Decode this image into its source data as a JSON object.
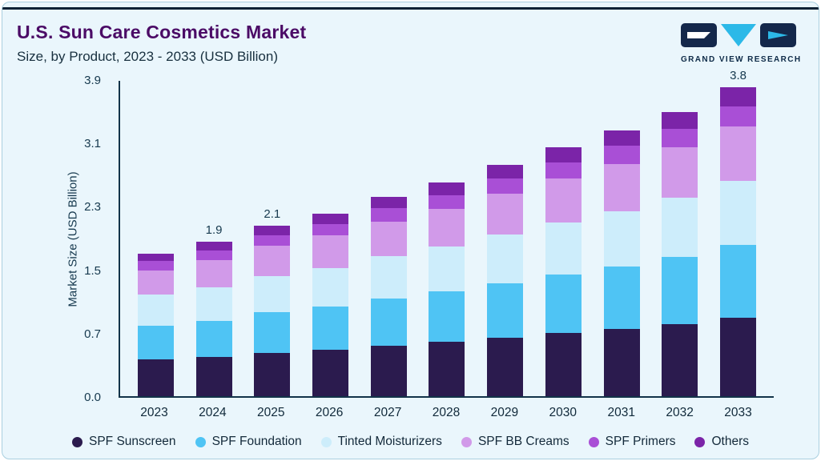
{
  "header": {
    "title": "U.S. Sun Care Cosmetics Market",
    "subtitle": "Size, by Product, 2023 - 2033 (USD Billion)",
    "brand": "GRAND VIEW RESEARCH"
  },
  "chart_data": {
    "type": "bar",
    "stacked": true,
    "title": "U.S. Sun Care Cosmetics Market Size, by Product, 2023 - 2033 (USD Billion)",
    "ylabel": "Market Size (USD Billion)",
    "ylim": [
      0,
      3.9
    ],
    "yticks": [
      "0.0",
      "0.7",
      "1.5",
      "2.3",
      "3.1",
      "3.9"
    ],
    "grid": false,
    "legend_position": "bottom",
    "categories": [
      "2023",
      "2024",
      "2025",
      "2026",
      "2027",
      "2028",
      "2029",
      "2030",
      "2031",
      "2032",
      "2033"
    ],
    "series": [
      {
        "name": "SPF Sunscreen",
        "color": "#2b1b4e",
        "values": [
          0.45,
          0.48,
          0.53,
          0.57,
          0.62,
          0.67,
          0.72,
          0.78,
          0.83,
          0.89,
          0.97
        ]
      },
      {
        "name": "SPF Foundation",
        "color": "#4fc4f4",
        "values": [
          0.42,
          0.45,
          0.5,
          0.53,
          0.58,
          0.62,
          0.67,
          0.72,
          0.77,
          0.82,
          0.89
        ]
      },
      {
        "name": "Tinted Moisturizers",
        "color": "#cdedfb",
        "values": [
          0.38,
          0.41,
          0.45,
          0.48,
          0.52,
          0.55,
          0.6,
          0.64,
          0.68,
          0.73,
          0.79
        ]
      },
      {
        "name": "SPF BB Creams",
        "color": "#d19ae9",
        "values": [
          0.3,
          0.33,
          0.37,
          0.4,
          0.43,
          0.46,
          0.5,
          0.54,
          0.58,
          0.62,
          0.67
        ]
      },
      {
        "name": "SPF Primers",
        "color": "#a94fd6",
        "values": [
          0.11,
          0.12,
          0.13,
          0.14,
          0.16,
          0.17,
          0.19,
          0.2,
          0.22,
          0.23,
          0.25
        ]
      },
      {
        "name": "Others",
        "color": "#7b24a8",
        "values": [
          0.09,
          0.11,
          0.12,
          0.13,
          0.14,
          0.16,
          0.17,
          0.18,
          0.19,
          0.21,
          0.23
        ]
      }
    ],
    "total_labels": [
      {
        "category": "2024",
        "label": "1.9"
      },
      {
        "category": "2025",
        "label": "2.1"
      },
      {
        "category": "2033",
        "label": "3.8"
      }
    ],
    "totals_estimated": [
      1.75,
      1.9,
      2.1,
      2.25,
      2.45,
      2.63,
      2.85,
      3.06,
      3.27,
      3.5,
      3.8
    ]
  },
  "colors": {
    "card_background": "#eaf6fc",
    "card_border": "#a9cfdf",
    "top_rule": "#0d2235",
    "title": "#4b0b66",
    "axis": "#123349",
    "text": "#16394e",
    "logo_navy": "#14284b",
    "logo_cyan": "#2cb9e8"
  }
}
